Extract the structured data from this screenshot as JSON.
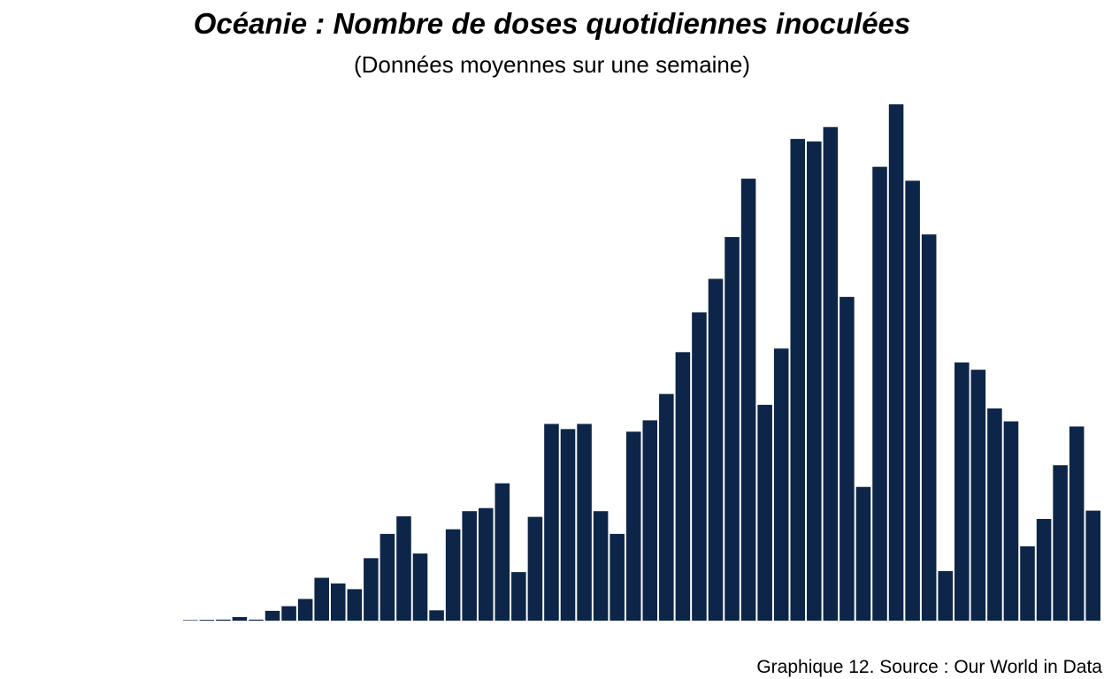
{
  "chart_data": {
    "type": "bar",
    "title": "Océanie : Nombre de doses quotidiennes inoculées",
    "subtitle": "(Données moyennes sur une semaine)",
    "caption": "Graphique 12. Source : Our World in Data",
    "xlabel": "",
    "ylabel": "",
    "ylim": [
      0,
      100
    ],
    "grid": false,
    "legend": "none",
    "bar_color": "#0d2548",
    "values": [
      0.1,
      0.15,
      0.2,
      0.7,
      0.2,
      1.9,
      2.8,
      4.2,
      8.3,
      7.2,
      6.1,
      12.1,
      16.8,
      20.2,
      13.0,
      2.0,
      17.7,
      21.2,
      21.8,
      26.6,
      9.4,
      20.1,
      38.1,
      37.1,
      38.1,
      21.2,
      16.8,
      36.6,
      38.8,
      43.9,
      52.0,
      59.7,
      66.2,
      74.3,
      85.6,
      41.8,
      52.7,
      93.3,
      92.8,
      95.6,
      62.7,
      25.9,
      87.9,
      100.0,
      85.2,
      74.8,
      9.6,
      50.0,
      48.6,
      41.1,
      38.6,
      14.4,
      19.7,
      30.1,
      37.6,
      21.3
    ]
  }
}
